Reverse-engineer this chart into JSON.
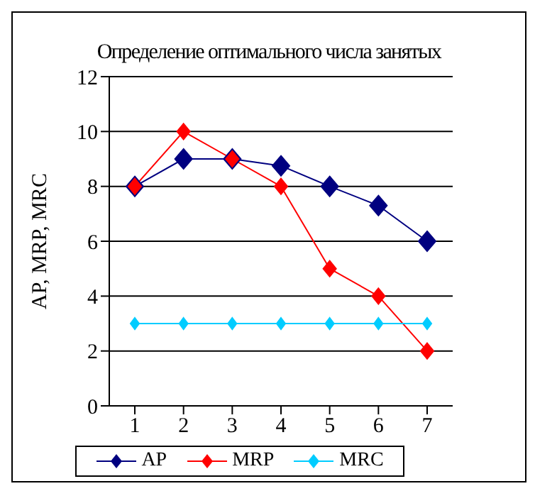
{
  "chart_data": {
    "type": "line",
    "title": "Определение оптимального числа занятых",
    "ylabel": "AP, MRP, MRC",
    "categories": [
      "1",
      "2",
      "3",
      "4",
      "5",
      "6",
      "7"
    ],
    "series": [
      {
        "name": "AP",
        "color": "#000080",
        "values": [
          8,
          9,
          9,
          8.75,
          8,
          7.3,
          6
        ]
      },
      {
        "name": "MRP",
        "color": "#ff0000",
        "values": [
          8,
          10,
          9,
          8,
          5,
          4,
          2
        ]
      },
      {
        "name": "MRC",
        "color": "#00ccff",
        "values": [
          3,
          3,
          3,
          3,
          3,
          3,
          3
        ]
      }
    ],
    "ylim": [
      0,
      12
    ],
    "yticks": [
      0,
      2,
      4,
      6,
      8,
      10,
      12
    ],
    "grid": "y",
    "legend": "bottom",
    "marker": "diamond"
  }
}
